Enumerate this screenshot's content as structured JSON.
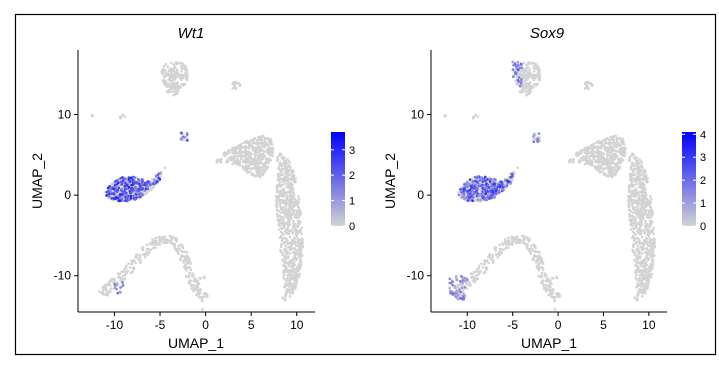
{
  "chart_data": [
    {
      "type": "scatter",
      "title": "Wt1",
      "xlabel": "UMAP_1",
      "ylabel": "UMAP_2",
      "xlim": [
        -14,
        12
      ],
      "ylim": [
        -14.5,
        18
      ],
      "x_ticks": [
        -10,
        -5,
        0,
        5,
        10
      ],
      "y_ticks": [
        -10,
        0,
        10
      ],
      "grid": false,
      "colorbar": {
        "min": 0,
        "max": 3.7,
        "ticks": [
          0,
          1,
          2,
          3
        ],
        "low_color": "#d3d3d3",
        "high_color": "#0000ff"
      },
      "expressing_regions": [
        {
          "cluster": "fish-shaped cluster",
          "x": [
            -11,
            -5
          ],
          "y": [
            -0.8,
            3.5
          ],
          "level": 2.5
        },
        {
          "cluster": "small island",
          "x": [
            -2.8,
            -2.0
          ],
          "y": [
            6.6,
            7.8
          ],
          "level": 2.0
        },
        {
          "cluster": "arc",
          "x": [
            -10,
            -9
          ],
          "y": [
            -12.2,
            -10.8
          ],
          "level": 1.5
        }
      ]
    },
    {
      "type": "scatter",
      "title": "Sox9",
      "xlabel": "UMAP_1",
      "ylabel": "UMAP_2",
      "xlim": [
        -14,
        12
      ],
      "ylim": [
        -14.5,
        18
      ],
      "x_ticks": [
        -10,
        -5,
        0,
        5,
        10
      ],
      "y_ticks": [
        -10,
        0,
        10
      ],
      "grid": false,
      "colorbar": {
        "min": 0,
        "max": 4.1,
        "ticks": [
          0,
          1,
          2,
          3,
          4
        ],
        "low_color": "#d3d3d3",
        "high_color": "#0000ff"
      },
      "expressing_regions": [
        {
          "cluster": "fish-shaped cluster",
          "x": [
            -11,
            -5
          ],
          "y": [
            -0.8,
            3.5
          ],
          "level": 2.5
        },
        {
          "cluster": "top cluster",
          "x": [
            -5,
            -4
          ],
          "y": [
            13.3,
            16.5
          ],
          "level": 2.0
        },
        {
          "cluster": "small island",
          "x": [
            -2.8,
            -2.0
          ],
          "y": [
            6.6,
            7.8
          ],
          "level": 1.5
        },
        {
          "cluster": "arc",
          "x": [
            -12,
            -10
          ],
          "y": [
            -13,
            -10
          ],
          "level": 1.5
        }
      ]
    }
  ]
}
